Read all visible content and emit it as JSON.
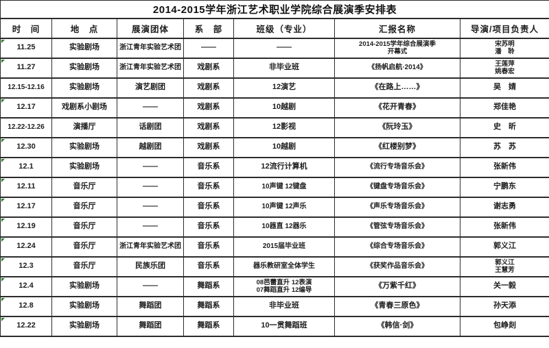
{
  "title": "2014-2015学年浙江艺术职业学院综合展演季安排表",
  "colors": {
    "background": "#ffffff",
    "border": "#2a2a2a",
    "text": "#1c1c1c",
    "flag_green": "#2f7d32"
  },
  "table": {
    "headers": {
      "time": "时　间",
      "venue": "地　点",
      "group": "展演团体",
      "dept": "系　部",
      "class_major": "班级（专业）",
      "show": "汇报名称",
      "director": "导演/项目负责人"
    },
    "rows": [
      {
        "time": "11.25",
        "venue": "实验剧场",
        "group": "浙江青年实验艺术团",
        "dept": "——",
        "class_major": "——",
        "show": "2014-2015学年综合展演季\n开幕式",
        "director": "宋苏明\n潘　聆",
        "flag": true
      },
      {
        "time": "11.27",
        "venue": "实验剧场",
        "group": "浙江青年实验艺术团",
        "dept": "戏剧系",
        "class_major": "非毕业班",
        "show": "《扬帆启航·2014》",
        "director": "王莲萍\n姚春宏",
        "flag": true
      },
      {
        "time": "12.15-12.16",
        "venue": "实验剧场",
        "group": "演艺剧团",
        "dept": "戏剧系",
        "class_major": "12演艺",
        "show": "《在路上……》",
        "director": "吴　婧",
        "flag": false
      },
      {
        "time": "12.17",
        "venue": "戏剧系小剧场",
        "group": "——",
        "dept": "戏剧系",
        "class_major": "10越剧",
        "show": "《花开青春》",
        "director": "郑佳艳",
        "flag": true
      },
      {
        "time": "12.22-12.26",
        "venue": "演播厅",
        "group": "话剧团",
        "dept": "戏剧系",
        "class_major": "12影视",
        "show": "《阮玲玉》",
        "director": "史　昕",
        "flag": false
      },
      {
        "time": "12.30",
        "venue": "实验剧场",
        "group": "越剧团",
        "dept": "戏剧系",
        "class_major": "10越剧",
        "show": "《红楼别梦》",
        "director": "苏　苏",
        "flag": true
      },
      {
        "time": "12.1",
        "venue": "实验剧场",
        "group": "——",
        "dept": "音乐系",
        "class_major": "12流行计算机",
        "show": "《流行专场音乐会》",
        "director": "张新伟",
        "flag": true
      },
      {
        "time": "12.11",
        "venue": "音乐厅",
        "group": "——",
        "dept": "音乐系",
        "class_major": "10声键 12键盘",
        "show": "《键盘专场音乐会》",
        "director": "宁鹏东",
        "flag": true
      },
      {
        "time": "12.17",
        "venue": "音乐厅",
        "group": "——",
        "dept": "音乐系",
        "class_major": "10声键 12声乐",
        "show": "《声乐专场音乐会》",
        "director": "谢志勇",
        "flag": true
      },
      {
        "time": "12.19",
        "venue": "音乐厅",
        "group": "——",
        "dept": "音乐系",
        "class_major": "10器直 12器乐",
        "show": "《管弦专场音乐会》",
        "director": "张新伟",
        "flag": true
      },
      {
        "time": "12.24",
        "venue": "音乐厅",
        "group": "浙江青年实验艺术团",
        "dept": "音乐系",
        "class_major": "2015届毕业班",
        "show": "《综合专场音乐会》",
        "director": "郭义江",
        "flag": true
      },
      {
        "time": "12.3",
        "venue": "音乐厅",
        "group": "民族乐团",
        "dept": "音乐系",
        "class_major": "器乐教研室全体学生",
        "show": "《获奖作品音乐会》",
        "director": "郭义江\n王慧芳",
        "flag": true
      },
      {
        "time": "12.4",
        "venue": "实验剧场",
        "group": "——",
        "dept": "舞蹈系",
        "class_major": "08芭蕾直升 12表演\n07舞蹈直升 12编导",
        "show": "《万紫千红》",
        "director": "关一毅",
        "flag": true
      },
      {
        "time": "12.8",
        "venue": "实验剧场",
        "group": "舞蹈团",
        "dept": "舞蹈系",
        "class_major": "非毕业班",
        "show": "《青春三原色》",
        "director": "孙天添",
        "flag": true
      },
      {
        "time": "12.22",
        "venue": "实验剧场",
        "group": "舞蹈团",
        "dept": "舞蹈系",
        "class_major": "10一贯舞蹈班",
        "show": "《韩信·剑》",
        "director": "包峥剡",
        "flag": true
      }
    ]
  }
}
